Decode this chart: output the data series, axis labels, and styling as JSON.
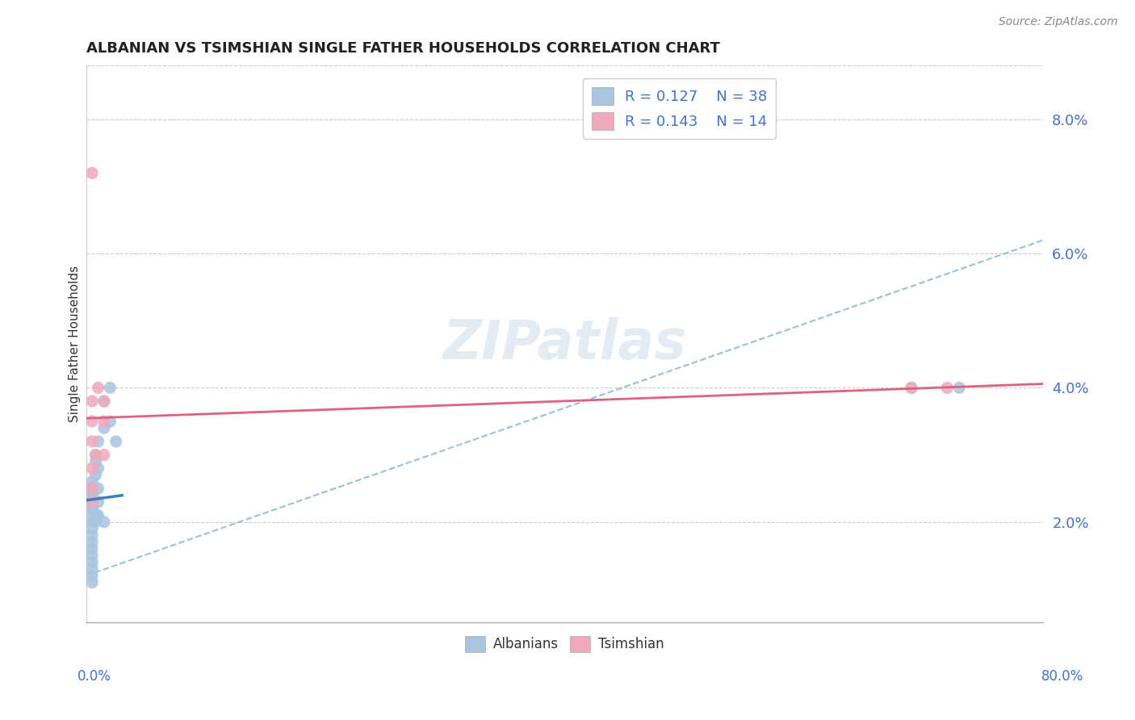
{
  "title": "ALBANIAN VS TSIMSHIAN SINGLE FATHER HOUSEHOLDS CORRELATION CHART",
  "source": "Source: ZipAtlas.com",
  "ylabel": "Single Father Households",
  "yticks": [
    "2.0%",
    "4.0%",
    "6.0%",
    "8.0%"
  ],
  "ytick_vals": [
    0.02,
    0.04,
    0.06,
    0.08
  ],
  "xmin": 0.0,
  "xmax": 0.8,
  "ymin": 0.005,
  "ymax": 0.088,
  "albanian_color": "#a8c4e0",
  "tsimshian_color": "#f0a8bc",
  "albanian_line_color": "#3a7fc1",
  "tsimshian_line_color": "#e06080",
  "axis_color": "#4472c4",
  "legend_color": "#4472c4",
  "albanian_R": "0.127",
  "albanian_N": "38",
  "tsimshian_R": "0.143",
  "tsimshian_N": "14",
  "watermark": "ZIPatlas",
  "albanian_x": [
    0.005,
    0.005,
    0.005,
    0.005,
    0.005,
    0.005,
    0.005,
    0.005,
    0.005,
    0.005,
    0.005,
    0.005,
    0.005,
    0.005,
    0.005,
    0.005,
    0.005,
    0.005,
    0.005,
    0.005,
    0.008,
    0.008,
    0.008,
    0.008,
    0.008,
    0.01,
    0.01,
    0.01,
    0.01,
    0.01,
    0.015,
    0.015,
    0.015,
    0.02,
    0.02,
    0.025,
    0.69,
    0.73
  ],
  "albanian_y": [
    0.023,
    0.022,
    0.021,
    0.02,
    0.019,
    0.018,
    0.017,
    0.016,
    0.015,
    0.014,
    0.013,
    0.024,
    0.025,
    0.026,
    0.012,
    0.011,
    0.023,
    0.024,
    0.025,
    0.022,
    0.027,
    0.029,
    0.03,
    0.021,
    0.02,
    0.032,
    0.028,
    0.025,
    0.023,
    0.021,
    0.038,
    0.034,
    0.02,
    0.04,
    0.035,
    0.032,
    0.04,
    0.04
  ],
  "tsimshian_x": [
    0.005,
    0.005,
    0.005,
    0.005,
    0.005,
    0.005,
    0.005,
    0.008,
    0.01,
    0.015,
    0.015,
    0.015,
    0.69,
    0.72
  ],
  "tsimshian_y": [
    0.072,
    0.038,
    0.035,
    0.032,
    0.028,
    0.025,
    0.023,
    0.03,
    0.04,
    0.038,
    0.035,
    0.03,
    0.04,
    0.04
  ],
  "dashed_line_x": [
    0.0,
    0.8
  ],
  "dashed_line_y": [
    0.012,
    0.062
  ],
  "albanian_trend_x": [
    0.0,
    0.03
  ],
  "tsimshian_trend_x": [
    0.0,
    0.8
  ]
}
